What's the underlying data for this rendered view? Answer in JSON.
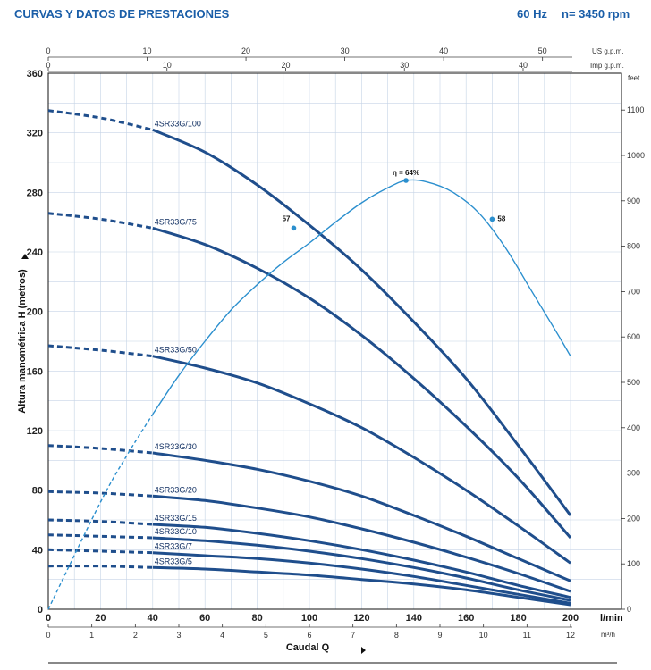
{
  "header": {
    "title": "CURVAS Y DATOS DE PRESTACIONES",
    "freq": "60 Hz",
    "speed": "n= 3450 rpm"
  },
  "colors": {
    "curve": "#1f4e8c",
    "efficiency": "#2b8fce",
    "grid": "#c6d4e6",
    "axis": "#111111"
  },
  "chart_data": {
    "type": "line",
    "title": "CURVAS Y DATOS DE PRESTACIONES",
    "xlabel": "Caudal Q",
    "ylabel": "Altura manométrica H (metros)",
    "xlim": [
      0,
      200
    ],
    "ylim": [
      0,
      360
    ],
    "x_unit": "l/min",
    "y2_unit": "feet",
    "x_ticks": [
      0,
      20,
      40,
      60,
      80,
      100,
      120,
      140,
      160,
      180,
      200
    ],
    "y_ticks": [
      0,
      40,
      80,
      120,
      160,
      200,
      240,
      280,
      320,
      360
    ],
    "y2_ticks": [
      0,
      100,
      200,
      300,
      400,
      500,
      600,
      700,
      800,
      900,
      1000,
      1100
    ],
    "top_axis_us": {
      "label": "US g.p.m.",
      "ticks": [
        0,
        10,
        20,
        30,
        40,
        50
      ]
    },
    "top_axis_imp": {
      "label": "Imp g.p.m.",
      "ticks": [
        0,
        10,
        20,
        30,
        40
      ]
    },
    "bottom_axis_m3h": {
      "label": "m³/h",
      "ticks": [
        0,
        1,
        2,
        3,
        4,
        5,
        6,
        7,
        8,
        9,
        10,
        11,
        12
      ]
    },
    "solid_start_x": 40,
    "series": [
      {
        "name": "4SR33G/100",
        "x": [
          0,
          20,
          40,
          60,
          80,
          100,
          120,
          140,
          160,
          180,
          200
        ],
        "values": [
          335,
          330,
          322,
          307,
          285,
          258,
          228,
          193,
          155,
          110,
          63
        ]
      },
      {
        "name": "4SR33G/75",
        "x": [
          0,
          20,
          40,
          60,
          80,
          100,
          120,
          140,
          160,
          180,
          200
        ],
        "values": [
          266,
          262,
          256,
          245,
          229,
          209,
          184,
          155,
          123,
          88,
          48
        ]
      },
      {
        "name": "4SR33G/50",
        "x": [
          0,
          20,
          40,
          60,
          80,
          100,
          120,
          140,
          160,
          180,
          200
        ],
        "values": [
          177,
          174,
          170,
          162,
          152,
          138,
          122,
          102,
          80,
          56,
          31
        ]
      },
      {
        "name": "4SR33G/30",
        "x": [
          0,
          20,
          40,
          60,
          80,
          100,
          120,
          140,
          160,
          180,
          200
        ],
        "values": [
          110,
          108,
          105,
          100,
          94,
          86,
          76,
          63,
          49,
          34,
          19
        ]
      },
      {
        "name": "4SR33G/20",
        "x": [
          0,
          20,
          40,
          60,
          80,
          100,
          120,
          140,
          160,
          180,
          200
        ],
        "values": [
          79,
          78,
          76,
          73,
          68,
          62,
          54,
          45,
          35,
          24,
          12
        ]
      },
      {
        "name": "4SR33G/15",
        "x": [
          0,
          20,
          40,
          60,
          80,
          100,
          120,
          140,
          160,
          180,
          200
        ],
        "values": [
          60,
          59,
          57,
          55,
          51,
          46,
          40,
          33,
          25,
          16,
          8
        ]
      },
      {
        "name": "4SR33G/10",
        "x": [
          0,
          20,
          40,
          60,
          80,
          100,
          120,
          140,
          160,
          180,
          200
        ],
        "values": [
          50,
          49,
          48,
          46,
          43,
          39,
          34,
          28,
          21,
          13,
          6
        ]
      },
      {
        "name": "4SR33G/7",
        "x": [
          0,
          20,
          40,
          60,
          80,
          100,
          120,
          140,
          160,
          180,
          200
        ],
        "values": [
          40,
          39,
          38,
          36,
          34,
          31,
          27,
          22,
          16,
          10,
          4
        ]
      },
      {
        "name": "4SR33G/5",
        "x": [
          0,
          20,
          40,
          60,
          80,
          100,
          120,
          140,
          160,
          180,
          200
        ],
        "values": [
          29,
          29,
          28,
          27,
          25,
          23,
          20,
          17,
          13,
          8,
          3
        ]
      }
    ],
    "efficiency": {
      "name": "η",
      "x": [
        0,
        20,
        30,
        40,
        50,
        60,
        70,
        80,
        90,
        100,
        110,
        120,
        130,
        137,
        145,
        155,
        165,
        175,
        185,
        195,
        200
      ],
      "values": [
        0,
        72,
        103,
        131,
        157,
        180,
        201,
        218,
        233,
        246,
        260,
        273,
        283,
        288,
        287,
        280,
        266,
        243,
        214,
        185,
        170
      ],
      "dashed_until_x": 40,
      "markers": [
        {
          "label": "57",
          "x": 94,
          "y": 256
        },
        {
          "label": "η = 64%",
          "x": 137,
          "y": 288
        },
        {
          "label": "58",
          "x": 170,
          "y": 262
        }
      ]
    }
  }
}
